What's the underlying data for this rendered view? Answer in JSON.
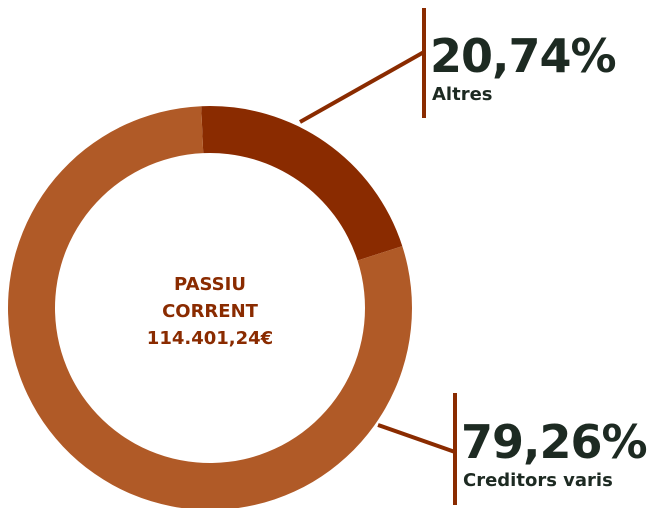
{
  "chart_data": {
    "type": "pie",
    "donut": true,
    "center_labels": [
      "PASSIU",
      "CORRENT",
      "114.401,24€"
    ],
    "categories": [
      "Altres",
      "Creditors varis"
    ],
    "values": [
      20.74,
      79.26
    ],
    "value_labels": [
      "20,74%",
      "79,26%"
    ],
    "colors": [
      "#8a2b00",
      "#b05a27"
    ]
  }
}
